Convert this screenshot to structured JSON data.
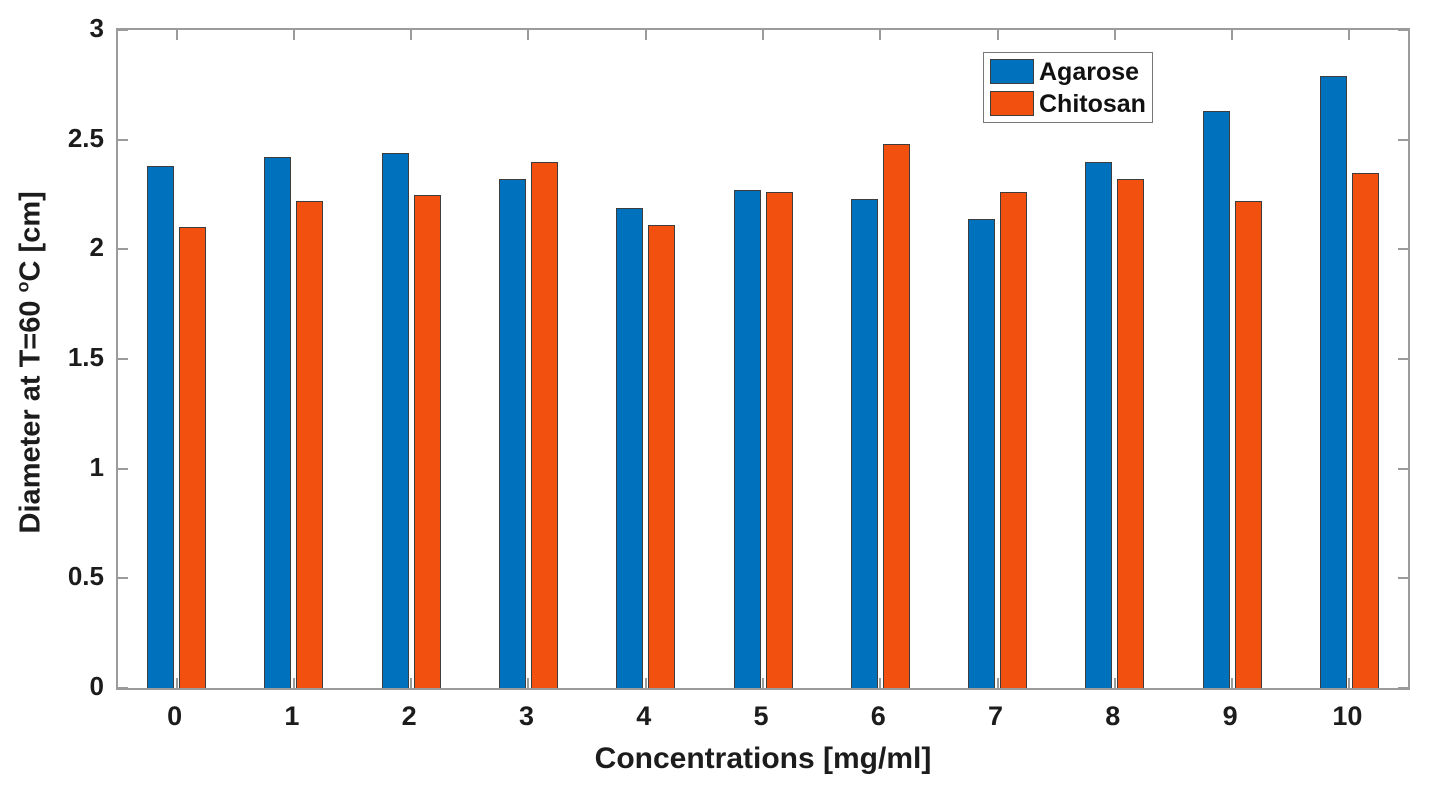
{
  "chart_data": {
    "type": "bar",
    "title": "",
    "categories": [
      "0",
      "1",
      "2",
      "3",
      "4",
      "5",
      "6",
      "7",
      "8",
      "9",
      "10"
    ],
    "series": [
      {
        "name": "Agarose",
        "color": "#0072BD",
        "values": [
          2.38,
          2.42,
          2.44,
          2.32,
          2.19,
          2.27,
          2.23,
          2.14,
          2.4,
          2.63,
          2.79
        ]
      },
      {
        "name": "Chitosan",
        "color": "#F1500E",
        "values": [
          2.1,
          2.22,
          2.25,
          2.4,
          2.11,
          2.26,
          2.48,
          2.26,
          2.32,
          2.22,
          2.35
        ]
      }
    ],
    "xlabel": "Concentrations [mg/ml]",
    "ylabel_prefix": "Diameter at T=60 ",
    "ylabel_sup": "o",
    "ylabel_suffix": "C [cm]",
    "ylim": [
      0,
      3
    ],
    "yticks": [
      0,
      0.5,
      1,
      1.5,
      2,
      2.5,
      3
    ],
    "ytick_labels": [
      "0",
      "0.5",
      "1",
      "1.5",
      "2",
      "2.5",
      "3"
    ],
    "grid": false,
    "legend_position": "inside-top-right",
    "axis_color": "#9b9b9b",
    "bar_edge_color": "#3d3d3d",
    "text_color": "#1c1c1c",
    "background_color": "#ffffff"
  }
}
